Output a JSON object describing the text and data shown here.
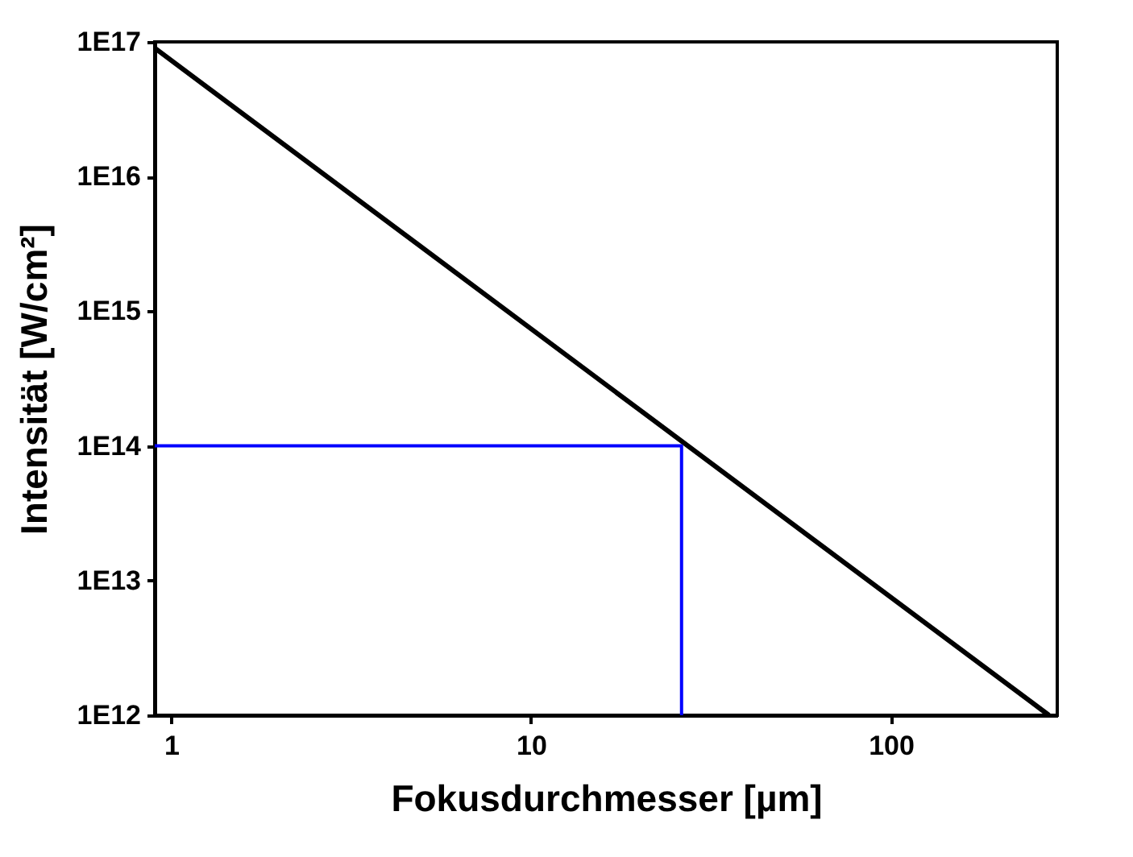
{
  "chart_data": {
    "type": "line",
    "xlabel": "Fokusdurchmesser [µm]",
    "ylabel": "Intensität [W/cm²]",
    "log": "xy",
    "grid": false,
    "line_style": "solid",
    "marker": "none",
    "xlim": [
      0.9,
      290
    ],
    "ylim": [
      1000000000000.0,
      1e+17
    ],
    "xticks": [
      1,
      10,
      100
    ],
    "yticks": [
      {
        "value": 1000000000000.0,
        "label": "1E12"
      },
      {
        "value": 10000000000000.0,
        "label": "1E13"
      },
      {
        "value": 100000000000000.0,
        "label": "1E14"
      },
      {
        "value": 1000000000000000.0,
        "label": "1E15"
      },
      {
        "value": 1e+16,
        "label": "1E16"
      },
      {
        "value": 1e+17,
        "label": "1E17"
      }
    ],
    "series": [
      {
        "color": "#000000",
        "x": [
          0.9,
          275
        ],
        "values": [
          9e+16,
          1000000000000.0
        ]
      },
      {
        "color": "#0000ff",
        "x": [
          0.9,
          26.2,
          26.2
        ],
        "values": [
          100000000000000.0,
          100000000000000.0,
          1000000000000.0
        ]
      }
    ]
  }
}
